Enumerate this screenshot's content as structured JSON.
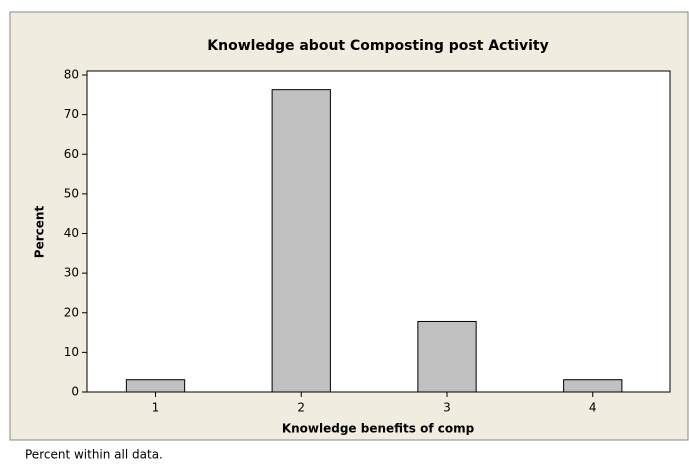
{
  "chart_data": {
    "type": "bar",
    "title": "Knowledge about Composting post Activity",
    "x_label": "Knowledge benefits of comp",
    "y_label": "Percent",
    "categories": [
      "1",
      "2",
      "3",
      "4"
    ],
    "values": [
      3.1,
      76.3,
      17.8,
      3.1
    ],
    "color": "#c0c0c0",
    "ylim": [
      0,
      80
    ],
    "yticks": [
      0,
      10,
      20,
      30,
      40,
      50,
      60,
      70,
      80
    ],
    "grid": false,
    "footnote": "Percent within all data."
  }
}
